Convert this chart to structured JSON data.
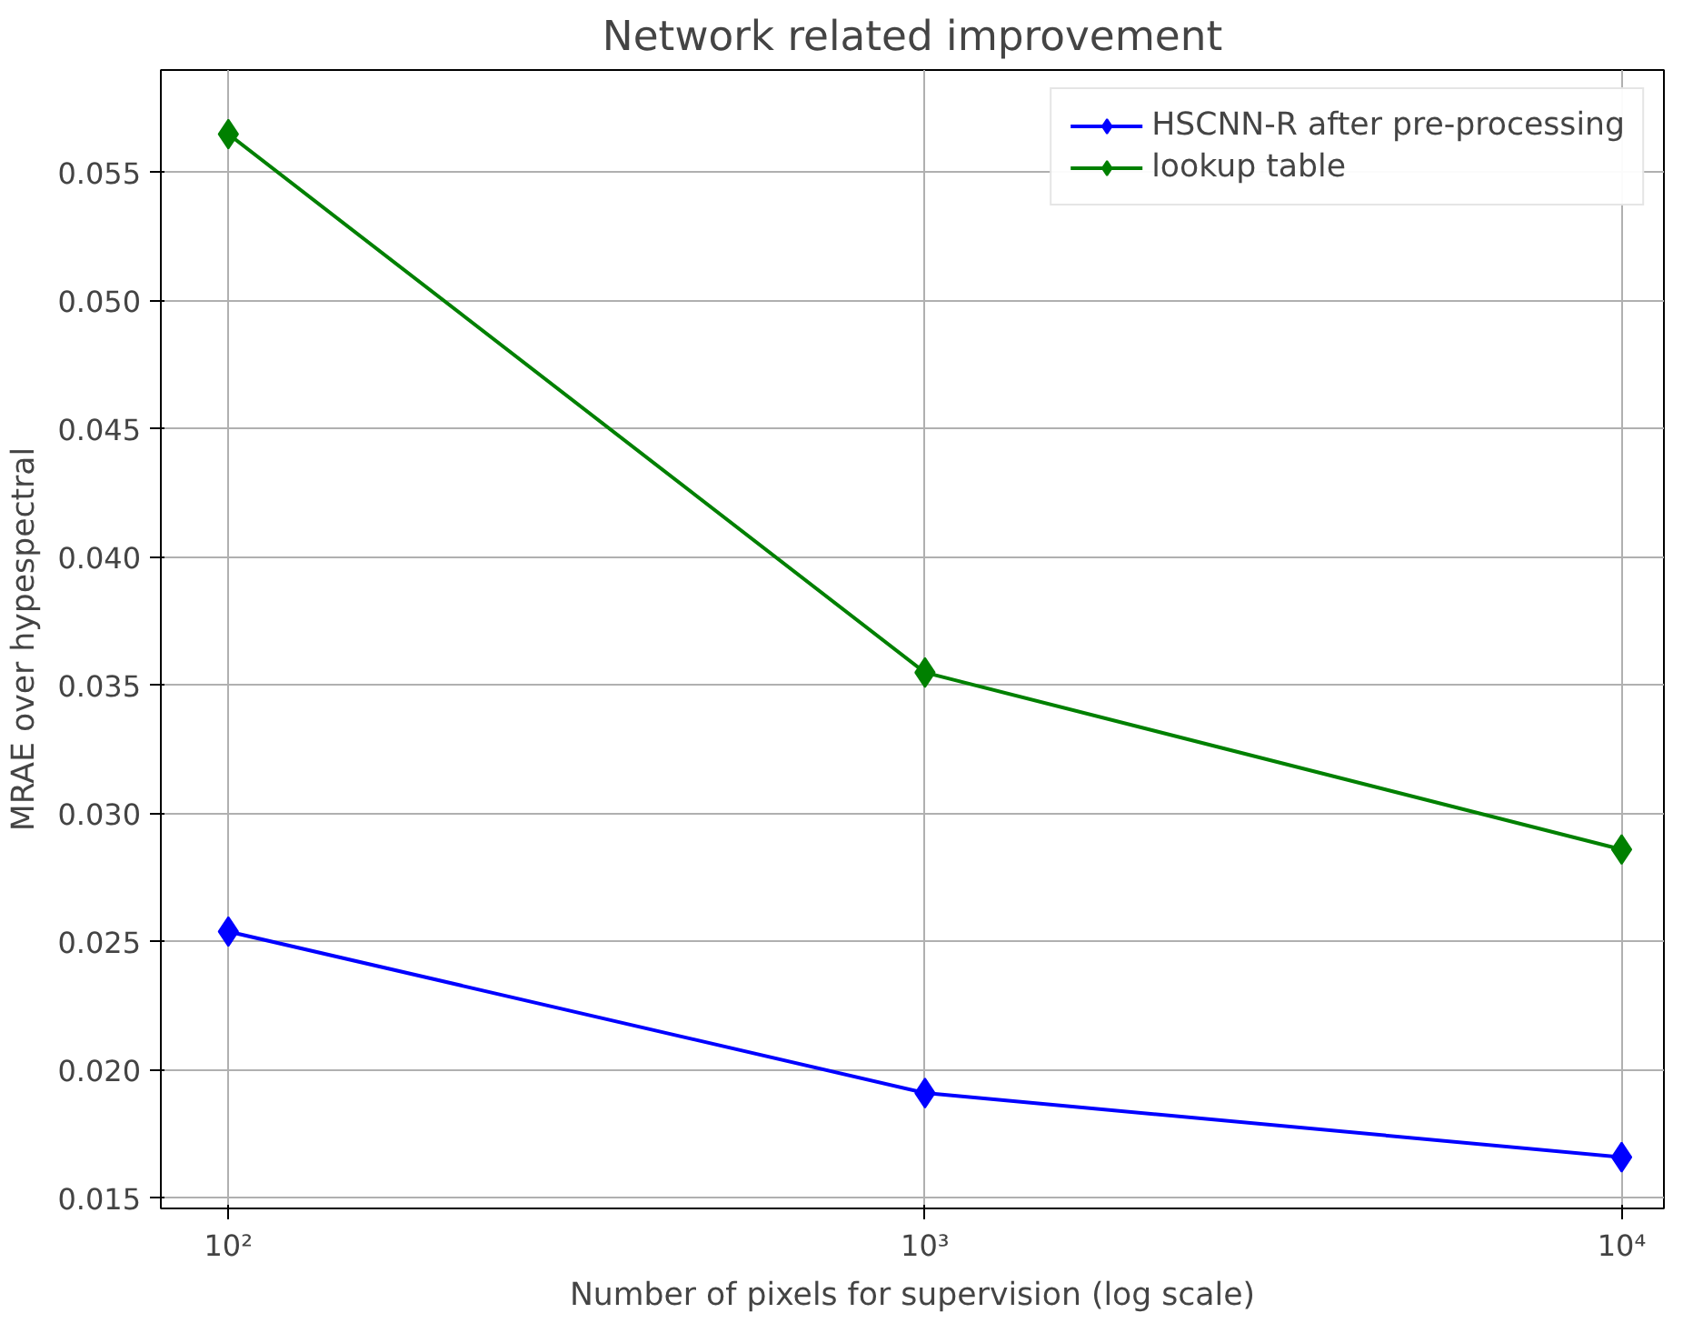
{
  "chart_data": {
    "type": "line",
    "title": "Network related improvement",
    "xlabel": "Number of pixels for supervision (log scale)",
    "ylabel": "MRAE over hypespectral",
    "x": [
      100,
      1000,
      10000
    ],
    "series": [
      {
        "name": "HSCNN-R after pre-processing",
        "color": "#0000ff",
        "values": [
          0.0254,
          0.0191,
          0.0166
        ]
      },
      {
        "name": "lookup table",
        "color": "#008000",
        "values": [
          0.0565,
          0.0355,
          0.0286
        ]
      }
    ],
    "log": "x",
    "xlim": [
      80,
      11500
    ],
    "ylim": [
      0.0146,
      0.059
    ],
    "xticks": [
      {
        "value": 100,
        "label": "10²"
      },
      {
        "value": 1000,
        "label": "10³"
      },
      {
        "value": 10000,
        "label": "10⁴"
      }
    ],
    "yticks": [
      0.015,
      {
        "value": 0.02,
        "label": "0.020"
      },
      0.025,
      {
        "value": 0.03,
        "label": "0.030"
      },
      0.035,
      {
        "value": 0.04,
        "label": "0.040"
      },
      0.045,
      {
        "value": 0.05,
        "label": "0.050"
      },
      0.055
    ],
    "grid": true,
    "legend": "top right",
    "marker": "diamond",
    "line_style": "solid"
  }
}
